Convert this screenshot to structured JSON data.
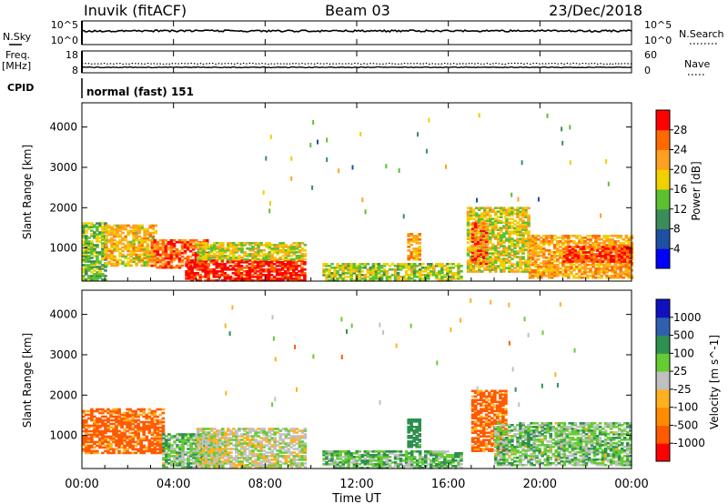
{
  "header": {
    "station": "Inuvik (fitACF)",
    "beam": "Beam 03",
    "date": "23/Dec/2018"
  },
  "noise_panel": {
    "left_label": "N.Sky",
    "right_label": "N.Search",
    "left_ticks": [
      "10^5",
      "10^0"
    ],
    "right_ticks": [
      "10^5",
      "10^0"
    ]
  },
  "freq_panel": {
    "left_label_1": "Freq.",
    "left_label_2": "[MHz]",
    "right_label": "Nave",
    "left_ticks": [
      "18",
      "8"
    ],
    "right_ticks": [
      "60",
      "0"
    ]
  },
  "cpid": {
    "label": "CPID",
    "value": "normal (fast) 151"
  },
  "colors": {
    "power_scale": [
      "#0000ff",
      "#1f4fa0",
      "#3c8c5a",
      "#5cc030",
      "#f0d000",
      "#ffa020",
      "#ff6a00",
      "#ff0000"
    ],
    "velocity_scale": [
      "#ff0000",
      "#ff5a00",
      "#ff8c00",
      "#ffb020",
      "#c0c0c0",
      "#66cc33",
      "#2f8f4f",
      "#2f60b0",
      "#1010c0"
    ]
  },
  "chart_data": [
    {
      "type": "heatmap",
      "name": "power",
      "xlabel": "",
      "ylabel": "Slant Range [km]",
      "xlim": [
        0,
        24
      ],
      "ylim": [
        180,
        4600
      ],
      "yticks": [
        1000,
        2000,
        3000,
        4000
      ],
      "colorbar": {
        "label": "Power [dB]",
        "ticks": [
          "4",
          "8",
          "12",
          "16",
          "20",
          "24",
          "28"
        ],
        "range": [
          0,
          32
        ]
      },
      "features": [
        {
          "t0": 0.0,
          "t1": 1.0,
          "r0": 200,
          "r1": 1600,
          "value": 14
        },
        {
          "t0": 1.0,
          "t1": 3.2,
          "r0": 550,
          "r1": 1550,
          "value": 20
        },
        {
          "t0": 3.0,
          "t1": 5.5,
          "r0": 500,
          "r1": 1200,
          "value": 26
        },
        {
          "t0": 4.5,
          "t1": 9.7,
          "r0": 180,
          "r1": 700,
          "value": 30
        },
        {
          "t0": 5.0,
          "t1": 9.7,
          "r0": 700,
          "r1": 1150,
          "value": 18
        },
        {
          "t0": 10.5,
          "t1": 16.5,
          "r0": 180,
          "r1": 600,
          "value": 16
        },
        {
          "t0": 14.2,
          "t1": 14.7,
          "r0": 700,
          "r1": 1350,
          "value": 22
        },
        {
          "t0": 16.8,
          "t1": 19.5,
          "r0": 400,
          "r1": 2000,
          "value": 18
        },
        {
          "t0": 17.0,
          "t1": 17.7,
          "r0": 600,
          "r1": 1600,
          "value": 26
        },
        {
          "t0": 19.5,
          "t1": 24.0,
          "r0": 250,
          "r1": 1300,
          "value": 22
        },
        {
          "t0": 21.0,
          "t1": 24.0,
          "r0": 650,
          "r1": 1050,
          "value": 28
        }
      ]
    },
    {
      "type": "heatmap",
      "name": "velocity",
      "xlabel": "Time UT",
      "ylabel": "Slant Range [km]",
      "xlim": [
        0,
        24
      ],
      "ylim": [
        180,
        4600
      ],
      "xticks": [
        "00:00",
        "04:00",
        "08:00",
        "12:00",
        "16:00",
        "20:00",
        "00:00"
      ],
      "yticks": [
        1000,
        2000,
        3000,
        4000
      ],
      "colorbar": {
        "label": "Velocity [m s^-1]",
        "ticks": [
          "-1000",
          "-500",
          "-100",
          "-25",
          "25",
          "100",
          "500",
          "1000"
        ],
        "range": [
          -1000,
          1000
        ]
      },
      "features": [
        {
          "t0": 0.0,
          "t1": 3.5,
          "r0": 550,
          "r1": 1650,
          "value": -200
        },
        {
          "t0": 3.5,
          "t1": 6.0,
          "r0": 200,
          "r1": 1050,
          "value": 60
        },
        {
          "t0": 5.0,
          "t1": 9.7,
          "r0": 200,
          "r1": 1150,
          "value": 0
        },
        {
          "t0": 10.5,
          "t1": 16.5,
          "r0": 180,
          "r1": 600,
          "value": 80
        },
        {
          "t0": 14.2,
          "t1": 14.7,
          "r0": 700,
          "r1": 1400,
          "value": 300
        },
        {
          "t0": 17.0,
          "t1": 18.5,
          "r0": 600,
          "r1": 2100,
          "value": -200
        },
        {
          "t0": 18.0,
          "t1": 24.0,
          "r0": 250,
          "r1": 1300,
          "value": 60
        }
      ]
    }
  ]
}
